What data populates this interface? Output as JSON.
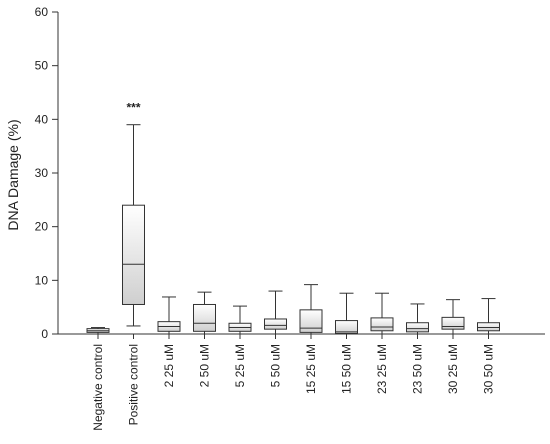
{
  "chart_data": {
    "type": "box",
    "title": "",
    "xlabel": "",
    "ylabel": "DNA Damage (%)",
    "ylim": [
      0,
      60
    ],
    "yticks": [
      "0",
      "10",
      "20",
      "30",
      "40",
      "50",
      "60"
    ],
    "grid": false,
    "legend": "none",
    "colors": {
      "box_top": "#ffffff",
      "box_bottom": "#cfcfcf",
      "stroke": "#333333"
    },
    "categories": [
      "Negative control",
      "Positive control",
      "2  25 uM",
      "2  50 uM",
      "5  25 uM",
      "5  50 uM",
      "15  25 uM",
      "15  50 uM",
      "23  25 uM",
      "23  50 uM",
      "30  25 uM",
      "30  50 uM"
    ],
    "boxes": [
      {
        "min": 0.0,
        "q1": 0.3,
        "median": 0.6,
        "q3": 1.0,
        "max": 1.2
      },
      {
        "min": 1.5,
        "q1": 5.5,
        "median": 13.0,
        "q3": 24.0,
        "max": 39.0
      },
      {
        "min": 0.0,
        "q1": 0.5,
        "median": 1.4,
        "q3": 2.3,
        "max": 6.9
      },
      {
        "min": 0.0,
        "q1": 0.5,
        "median": 2.0,
        "q3": 5.5,
        "max": 7.8
      },
      {
        "min": 0.0,
        "q1": 0.5,
        "median": 1.2,
        "q3": 2.0,
        "max": 5.2
      },
      {
        "min": 0.0,
        "q1": 0.9,
        "median": 1.6,
        "q3": 2.8,
        "max": 8.0
      },
      {
        "min": 0.0,
        "q1": 0.3,
        "median": 1.1,
        "q3": 4.5,
        "max": 9.2
      },
      {
        "min": 0.0,
        "q1": 0.1,
        "median": 0.4,
        "q3": 2.5,
        "max": 7.6
      },
      {
        "min": 0.0,
        "q1": 0.6,
        "median": 1.3,
        "q3": 3.0,
        "max": 7.6
      },
      {
        "min": 0.0,
        "q1": 0.4,
        "median": 1.0,
        "q3": 2.1,
        "max": 5.6
      },
      {
        "min": 0.0,
        "q1": 0.9,
        "median": 1.4,
        "q3": 3.1,
        "max": 6.4
      },
      {
        "min": 0.0,
        "q1": 0.6,
        "median": 1.2,
        "q3": 2.1,
        "max": 6.6
      }
    ],
    "annotations": [
      {
        "category_index": 1,
        "y": 41.5,
        "text": "***"
      }
    ]
  }
}
